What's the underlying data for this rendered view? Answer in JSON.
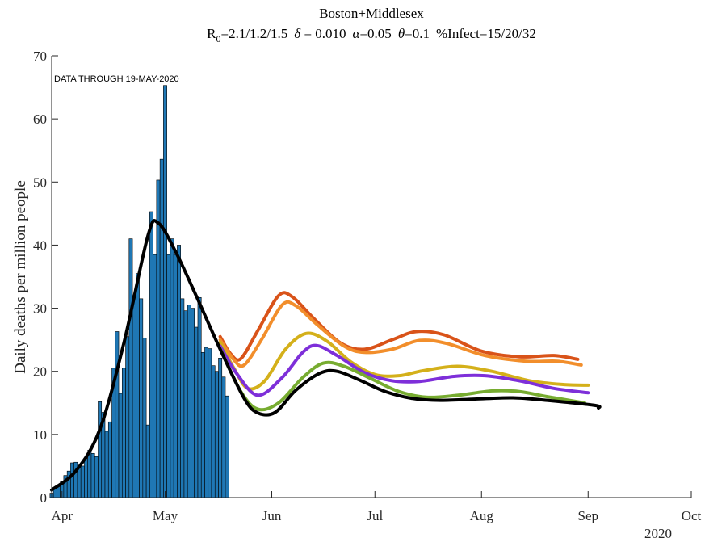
{
  "chart_data": {
    "type": "bar+line",
    "title": "Boston+Middlesex",
    "subtitle": {
      "r_symbol": "R",
      "r_sub": "0",
      "r_value": "=2.1/1.2/1.5",
      "delta_symbol": "δ",
      "delta_value": " = 0.010",
      "alpha_symbol": "α",
      "alpha_value": "=0.05",
      "theta_symbol": "θ",
      "theta_value": "=0.1",
      "infect_value": "%Infect=15/20/32"
    },
    "ylabel": "Daily deaths per million people",
    "annotation": "DATA THROUGH 19-MAY-2020",
    "year_label": "2020",
    "x_range": [
      "2020-03-29",
      "2020-10-01"
    ],
    "ylim": [
      0,
      70
    ],
    "y_ticks": [
      0,
      10,
      20,
      30,
      40,
      50,
      60,
      70
    ],
    "x_ticks": [
      {
        "date": "2020-04-01",
        "label": "Apr"
      },
      {
        "date": "2020-05-01",
        "label": "May"
      },
      {
        "date": "2020-06-01",
        "label": "Jun"
      },
      {
        "date": "2020-07-01",
        "label": "Jul"
      },
      {
        "date": "2020-08-01",
        "label": "Aug"
      },
      {
        "date": "2020-09-01",
        "label": "Sep"
      },
      {
        "date": "2020-10-01",
        "label": "Oct"
      }
    ],
    "bar_color": "#1f77b4",
    "bars": {
      "start_date": "2020-03-29",
      "values": [
        0.7,
        1.5,
        2.0,
        2.5,
        3.5,
        4.2,
        5.5,
        5.6,
        5.0,
        5.0,
        6.2,
        7.5,
        7.0,
        6.5,
        15.2,
        13.5,
        10.5,
        12.0,
        20.5,
        26.3,
        16.5,
        20.5,
        25.5,
        41.0,
        32.0,
        35.5,
        31.5,
        25.3,
        11.5,
        45.3,
        38.5,
        50.3,
        53.6,
        65.3,
        38.5,
        41.0,
        38.5,
        40.0,
        31.5,
        29.6,
        30.5,
        30.0,
        27.0,
        31.7,
        23.0,
        23.8,
        23.6,
        20.9,
        20.0,
        22.1,
        19.1,
        16.1
      ]
    },
    "series": [
      {
        "color": "#000000",
        "points": [
          [
            "2020-03-29",
            1.2
          ],
          [
            "2020-04-05",
            4.2
          ],
          [
            "2020-04-12",
            10.8
          ],
          [
            "2020-04-19",
            24.5
          ],
          [
            "2020-04-26",
            41.5
          ],
          [
            "2020-04-29",
            43.5
          ],
          [
            "2020-05-04",
            39.0
          ],
          [
            "2020-05-10",
            32.0
          ],
          [
            "2020-05-17",
            23.5
          ],
          [
            "2020-05-24",
            15.7
          ],
          [
            "2020-05-28",
            13.4
          ],
          [
            "2020-06-02",
            13.5
          ],
          [
            "2020-06-08",
            17.0
          ],
          [
            "2020-06-15",
            19.7
          ],
          [
            "2020-06-20",
            20.0
          ],
          [
            "2020-06-27",
            18.5
          ],
          [
            "2020-07-04",
            16.8
          ],
          [
            "2020-07-12",
            15.7
          ],
          [
            "2020-07-20",
            15.4
          ],
          [
            "2020-07-30",
            15.6
          ],
          [
            "2020-08-10",
            15.8
          ],
          [
            "2020-08-20",
            15.4
          ],
          [
            "2020-09-03",
            14.6
          ],
          [
            "2020-09-04",
            14.2
          ]
        ]
      },
      {
        "color": "#77ac30",
        "points": [
          [
            "2020-05-17",
            23.6
          ],
          [
            "2020-05-23",
            16.8
          ],
          [
            "2020-05-28",
            14.0
          ],
          [
            "2020-06-03",
            15.0
          ],
          [
            "2020-06-10",
            19.0
          ],
          [
            "2020-06-16",
            21.3
          ],
          [
            "2020-06-22",
            20.8
          ],
          [
            "2020-06-30",
            18.8
          ],
          [
            "2020-07-08",
            16.8
          ],
          [
            "2020-07-16",
            15.9
          ],
          [
            "2020-07-25",
            16.2
          ],
          [
            "2020-08-04",
            16.9
          ],
          [
            "2020-08-12",
            16.8
          ],
          [
            "2020-08-20",
            16.0
          ],
          [
            "2020-08-31",
            15.0
          ]
        ]
      },
      {
        "color": "#7e2fd9",
        "points": [
          [
            "2020-05-17",
            24.0
          ],
          [
            "2020-05-22",
            19.5
          ],
          [
            "2020-05-28",
            16.2
          ],
          [
            "2020-06-04",
            19.0
          ],
          [
            "2020-06-10",
            23.0
          ],
          [
            "2020-06-14",
            24.1
          ],
          [
            "2020-06-20",
            22.5
          ],
          [
            "2020-06-28",
            19.8
          ],
          [
            "2020-07-06",
            18.5
          ],
          [
            "2020-07-14",
            18.4
          ],
          [
            "2020-07-24",
            19.2
          ],
          [
            "2020-08-02",
            19.3
          ],
          [
            "2020-08-12",
            18.5
          ],
          [
            "2020-08-22",
            17.3
          ],
          [
            "2020-09-01",
            16.6
          ]
        ]
      },
      {
        "color": "#d4b01a",
        "points": [
          [
            "2020-05-17",
            24.6
          ],
          [
            "2020-05-21",
            20.5
          ],
          [
            "2020-05-25",
            17.3
          ],
          [
            "2020-05-30",
            18.5
          ],
          [
            "2020-06-05",
            23.5
          ],
          [
            "2020-06-11",
            26.0
          ],
          [
            "2020-06-17",
            24.8
          ],
          [
            "2020-06-24",
            21.5
          ],
          [
            "2020-07-01",
            19.5
          ],
          [
            "2020-07-08",
            19.3
          ],
          [
            "2020-07-15",
            20.1
          ],
          [
            "2020-07-25",
            20.8
          ],
          [
            "2020-08-04",
            20.0
          ],
          [
            "2020-08-15",
            18.5
          ],
          [
            "2020-08-25",
            17.9
          ],
          [
            "2020-09-01",
            17.8
          ]
        ]
      },
      {
        "color": "#f28e2b",
        "points": [
          [
            "2020-05-17",
            25.0
          ],
          [
            "2020-05-21",
            21.8
          ],
          [
            "2020-05-24",
            21.0
          ],
          [
            "2020-05-29",
            25.0
          ],
          [
            "2020-06-04",
            30.5
          ],
          [
            "2020-06-08",
            30.4
          ],
          [
            "2020-06-14",
            27.5
          ],
          [
            "2020-06-22",
            24.0
          ],
          [
            "2020-06-28",
            23.0
          ],
          [
            "2020-07-06",
            23.5
          ],
          [
            "2020-07-14",
            24.9
          ],
          [
            "2020-07-22",
            24.4
          ],
          [
            "2020-08-02",
            22.5
          ],
          [
            "2020-08-14",
            21.6
          ],
          [
            "2020-08-23",
            21.6
          ],
          [
            "2020-08-30",
            21.0
          ]
        ]
      },
      {
        "color": "#d95319",
        "points": [
          [
            "2020-05-17",
            25.5
          ],
          [
            "2020-05-20",
            22.8
          ],
          [
            "2020-05-23",
            22.0
          ],
          [
            "2020-05-28",
            26.5
          ],
          [
            "2020-06-03",
            32.0
          ],
          [
            "2020-06-07",
            31.8
          ],
          [
            "2020-06-13",
            28.5
          ],
          [
            "2020-06-21",
            24.5
          ],
          [
            "2020-06-28",
            23.5
          ],
          [
            "2020-07-06",
            25.0
          ],
          [
            "2020-07-13",
            26.3
          ],
          [
            "2020-07-21",
            25.8
          ],
          [
            "2020-08-01",
            23.2
          ],
          [
            "2020-08-12",
            22.3
          ],
          [
            "2020-08-22",
            22.5
          ],
          [
            "2020-08-29",
            21.9
          ]
        ]
      }
    ]
  }
}
